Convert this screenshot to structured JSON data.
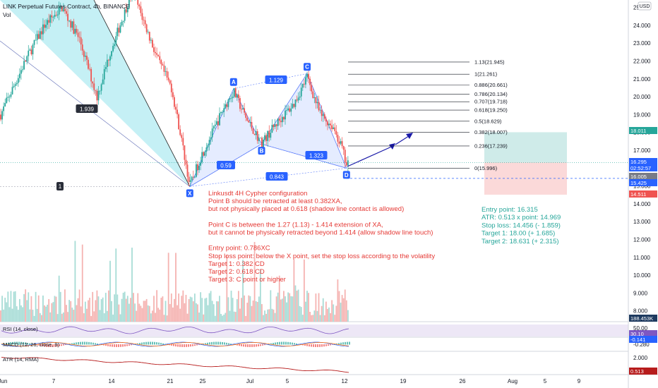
{
  "header": {
    "symbol_line": "LINK Perpetual Futures Contract, 4h, BINANCE",
    "vol_label": "Vol",
    "currency": "USD"
  },
  "price_axis": {
    "ticks": [
      "25.00",
      "24.000",
      "23.000",
      "22.000",
      "21.000",
      "20.000",
      "19.000",
      "18.000",
      "17.000",
      "16.000",
      "15.000",
      "14.000",
      "13.000",
      "12.000",
      "11.000",
      "10.000",
      "9.000",
      "8.000"
    ]
  },
  "time_axis": {
    "ticks": [
      "Jun",
      "7",
      "14",
      "21",
      "25",
      "Jul",
      "5",
      "12",
      "19",
      "26",
      "Aug",
      "5",
      "9"
    ]
  },
  "price_tags": [
    {
      "text": "18.011",
      "price": 18.011,
      "color": "#26a69a"
    },
    {
      "text": "16.295",
      "price": 16.295,
      "color": "#2962ff"
    },
    {
      "text": "02:52:57",
      "price": 15.98,
      "color": "#2962ff"
    },
    {
      "text": "16.005",
      "price": 15.996,
      "color": "#787b86"
    },
    {
      "text": "15.425",
      "price": 15.425,
      "color": "#2962ff"
    },
    {
      "text": "14.511",
      "price": 14.511,
      "color": "#ef5350"
    },
    {
      "text": "188.453K",
      "price": 7.6,
      "color": "#1e3a5f"
    }
  ],
  "harmonic": {
    "points": [
      {
        "label": "X",
        "price": 14.969,
        "t": 21.6
      },
      {
        "label": "A",
        "price": 20.45,
        "t": 26.6
      },
      {
        "label": "B",
        "price": 17.35,
        "t": 29.8
      },
      {
        "label": "C",
        "price": 21.3,
        "t": 35.0
      },
      {
        "label": "D",
        "price": 15.996,
        "t": 39.5
      }
    ],
    "ratios": [
      "1.939",
      "0.59",
      "1.129",
      "0.843",
      "1.323"
    ],
    "leg_marker": "1"
  },
  "fib_levels": [
    {
      "text": "1.13(21.945)",
      "price": 21.945
    },
    {
      "text": "1(21.261)",
      "price": 21.261
    },
    {
      "text": "0.886(20.661)",
      "price": 20.661
    },
    {
      "text": "0.786(20.134)",
      "price": 20.134
    },
    {
      "text": "0.707(19.718)",
      "price": 19.718
    },
    {
      "text": "0.618(19.250)",
      "price": 19.25
    },
    {
      "text": "0.5(18.629)",
      "price": 18.629
    },
    {
      "text": "0.382(18.007)",
      "price": 18.007
    },
    {
      "text": "0.236(17.239)",
      "price": 17.239
    },
    {
      "text": "0(15.996)",
      "price": 15.996
    }
  ],
  "notes": {
    "config": [
      "Linkusdt 4H Cypher configuration",
      "Point B should be retracted at least 0.382XA,",
      "but not physically placed at 0.618 (shadow line contact is allowed)",
      "",
      "Point C is between the 1.27 (1.13) - 1.414 extension of XA,",
      " but it cannot be physically retracted beyond 1.414 (allow shadow line touch)",
      "",
      "Entry point: 0.786XC",
      "Stop loss point: below the X point, set the stop loss according to the volatility",
      "Target 1: 0.382 CD",
      "Target 2: 0.618 CD",
      "Target 3: C point or higher"
    ],
    "trade": [
      "Entry point: 16.315",
      "ATR: 0.513 x point: 14.969",
      "Stop loss: 14.456 (- 1.859)",
      "Target 1: 18.00 (+ 1.685)",
      "Target 2: 18.631 (+ 2.315)"
    ]
  },
  "position": {
    "entry": 16.315,
    "target": 18.011,
    "stop": 14.511
  },
  "indicators": {
    "rsi": {
      "title": "RSI (14, close)",
      "ticks": [
        "50.00",
        "30.10"
      ],
      "value": 30.1
    },
    "macd": {
      "title": "MACD (12, 26, close, 9)",
      "ticks": [
        "-0.141",
        "-0.280"
      ]
    },
    "atr": {
      "title": "ATR (14, RMA)",
      "ticks": [
        "2.000",
        "0.513"
      ],
      "value": 0.513
    }
  },
  "colors": {
    "up": "#26a69a",
    "down": "#ef5350",
    "pattern_fill": "#2962ff",
    "cyan_fill": "#b2ebf2",
    "rsi": "#7e57c2",
    "atr": "#b71c1c",
    "note_red": "#e53935",
    "note_green": "#26a69a",
    "arrow": "#1a1aa8"
  },
  "chart_data": {
    "type": "candlestick",
    "title": "LINK Perpetual Futures Contract, 4h, BINANCE",
    "ylim": [
      7.5,
      25.2
    ],
    "x_range_days_from_jun1": [
      0,
      72
    ],
    "harmonic_pattern": "Cypher",
    "key_prices": {
      "X": 14.969,
      "C": 21.261,
      "D": 15.996,
      "last": 16.295
    },
    "price_path": [
      {
        "t": 0,
        "p": 19.0
      },
      {
        "t": 3,
        "p": 22.2
      },
      {
        "t": 5,
        "p": 24.0
      },
      {
        "t": 7,
        "p": 25.0
      },
      {
        "t": 9,
        "p": 23.2
      },
      {
        "t": 11,
        "p": 20.0
      },
      {
        "t": 12.5,
        "p": 22.5
      },
      {
        "t": 14,
        "p": 24.5
      },
      {
        "t": 15,
        "p": 26.0
      },
      {
        "t": 16.5,
        "p": 24.0
      },
      {
        "t": 18,
        "p": 22.0
      },
      {
        "t": 19.5,
        "p": 20.5
      },
      {
        "t": 20.5,
        "p": 18.0
      },
      {
        "t": 21.6,
        "p": 15.0
      },
      {
        "t": 23,
        "p": 16.8
      },
      {
        "t": 24.5,
        "p": 18.3
      },
      {
        "t": 25.5,
        "p": 19.4
      },
      {
        "t": 26.6,
        "p": 20.3
      },
      {
        "t": 28,
        "p": 18.8
      },
      {
        "t": 29.8,
        "p": 17.4
      },
      {
        "t": 31.5,
        "p": 18.5
      },
      {
        "t": 33.5,
        "p": 19.6
      },
      {
        "t": 35,
        "p": 21.1
      },
      {
        "t": 36.5,
        "p": 19.0
      },
      {
        "t": 38,
        "p": 18.3
      },
      {
        "t": 39,
        "p": 17.1
      },
      {
        "t": 39.5,
        "p": 16.1
      },
      {
        "t": 39.8,
        "p": 16.3
      }
    ]
  }
}
